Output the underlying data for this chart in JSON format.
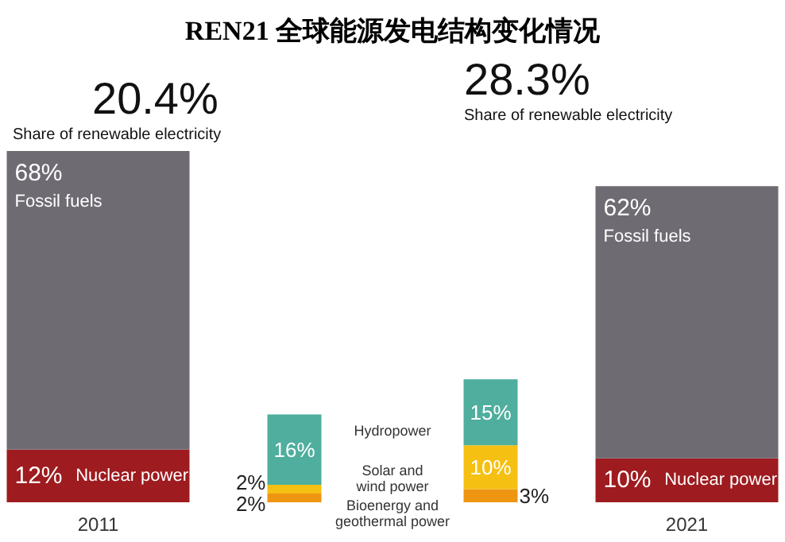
{
  "chart_data": {
    "type": "bar",
    "title": "REN21 全球能源发电结构变化情况",
    "stacked": true,
    "categories": [
      "2011",
      null,
      null,
      "2021"
    ],
    "series": [
      {
        "name": "Nuclear power",
        "color": "#9e1b1f",
        "values": [
          12,
          null,
          null,
          10
        ],
        "value_labels": [
          "12%",
          null,
          null,
          "10%"
        ]
      },
      {
        "name": "Fossil fuels",
        "color": "#6f6b73",
        "values": [
          68,
          null,
          null,
          62
        ],
        "value_labels": [
          "68%",
          null,
          null,
          "62%"
        ]
      },
      {
        "name": "Bioenergy and geothermal power",
        "color": "#ee9512",
        "values": [
          null,
          2,
          3,
          null
        ],
        "value_labels": [
          null,
          "2%",
          "3%",
          null
        ]
      },
      {
        "name": "Solar and wind power",
        "color": "#f6c012",
        "values": [
          null,
          2,
          10,
          null
        ],
        "value_labels": [
          null,
          "2%",
          "10%",
          null
        ]
      },
      {
        "name": "Hydropower",
        "color": "#4fae9e",
        "values": [
          null,
          16,
          15,
          null
        ],
        "value_labels": [
          null,
          "16%",
          "15%",
          null
        ]
      }
    ],
    "annotations": [
      "20.4% Share of renewable electricity",
      "28.3% Share of renewable electricity"
    ]
  }
}
